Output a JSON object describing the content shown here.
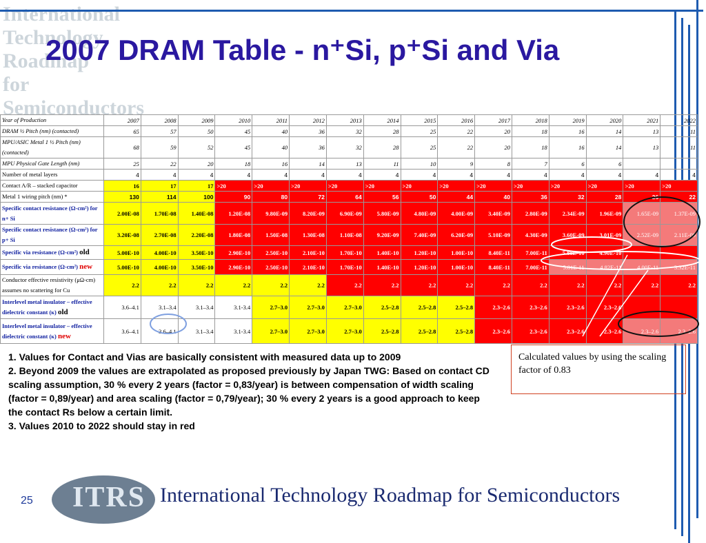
{
  "header": {
    "logo_text": "International Technology Roadmap for Semiconductors",
    "title": "2007 DRAM Table - n⁺Si, p⁺Si and Via"
  },
  "table": {
    "rows": [
      {
        "label": "Year of Production",
        "cells": [
          2007,
          2008,
          2009,
          2010,
          2011,
          2012,
          2013,
          2014,
          2015,
          2016,
          2017,
          2018,
          2019,
          2020,
          2021,
          2022
        ]
      },
      {
        "label": "DRAM ½ Pitch (nm) (contacted)",
        "cells": [
          65,
          57,
          50,
          45,
          40,
          36,
          32,
          28,
          25,
          22,
          20,
          18,
          16,
          14,
          13,
          11
        ]
      },
      {
        "label": "MPU/ASIC Metal 1 ½ Pitch (nm)(contacted)",
        "cells": [
          68,
          59,
          52,
          45,
          40,
          36,
          32,
          28,
          25,
          22,
          20,
          18,
          16,
          14,
          13,
          11
        ]
      },
      {
        "label": "MPU Physical Gate Length (nm)",
        "cells": [
          25,
          22,
          20,
          18,
          16,
          14,
          13,
          11,
          10,
          9,
          8,
          7,
          6,
          6
        ]
      },
      {
        "label": "Number of metal layers",
        "cells": [
          4,
          4,
          4,
          4,
          4,
          4,
          4,
          4,
          4,
          4,
          4,
          4,
          4,
          4,
          4,
          4
        ]
      },
      {
        "label": "Contact A/R – stacked capacitor",
        "cells": [
          16,
          17,
          17,
          ">20",
          ">20",
          ">20",
          ">20",
          ">20",
          ">20",
          ">20",
          ">20",
          ">20",
          ">20",
          ">20",
          ">20",
          ">20"
        ]
      },
      {
        "label": "Metal 1 wiring pitch (nm) *",
        "cells": [
          130,
          114,
          100,
          90,
          80,
          72,
          64,
          56,
          50,
          44,
          40,
          36,
          32,
          28,
          26,
          22
        ]
      },
      {
        "label": "Specific contact resistance (Ω-cm²) for n+ Si",
        "cells": [
          "2.00E-08",
          "1.70E-08",
          "1.40E-08",
          "1.20E-08",
          "9.80E-09",
          "8.20E-09",
          "6.90E-09",
          "5.80E-09",
          "4.80E-09",
          "4.00E-09",
          "3.40E-09",
          "2.80E-09",
          "2.34E-09",
          "1.96E-09",
          "1.65E-09",
          "1.37E-09"
        ]
      },
      {
        "label": "Specific contact resistance (Ω-cm²) for p+ Si",
        "cells": [
          "3.20E-08",
          "2.70E-08",
          "2.20E-08",
          "1.80E-08",
          "1.50E-08",
          "1.30E-08",
          "1.10E-08",
          "9.20E-09",
          "7.40E-09",
          "6.20E-09",
          "5.10E-09",
          "4.30E-09",
          "3.60E-09",
          "3.01E-09",
          "2.52E-09",
          "2.11E-09"
        ]
      },
      {
        "label": "Specific via resistance (Ω-cm²)",
        "tag": "old",
        "cells": [
          "5.00E-10",
          "4.00E-10",
          "3.50E-10",
          "2.90E-10",
          "2.50E-10",
          "2.10E-10",
          "1.70E-10",
          "1.40E-10",
          "1.20E-10",
          "1.00E-10",
          "8.40E-11",
          "7.00E-11",
          "5.88E-10",
          "4.90E-10"
        ]
      },
      {
        "label": "Specific via resistance (Ω-cm²)",
        "tag": "new",
        "cells": [
          "5.00E-10",
          "4.00E-10",
          "3.50E-10",
          "2.90E-10",
          "2.50E-10",
          "2.10E-10",
          "1.70E-10",
          "1.40E-10",
          "1.20E-10",
          "1.00E-10",
          "8.40E-11",
          "7.00E-11",
          "5.81E-11",
          "4.82E-11",
          "4.00E-11",
          "3.32E-11"
        ]
      },
      {
        "label": "Conductor effective resistivity (μΩ-cm) assumes no scattering for Cu",
        "cells": [
          2.2,
          2.2,
          2.2,
          2.2,
          2.2,
          2.2,
          2.2,
          2.2,
          2.2,
          2.2,
          2.2,
          2.2,
          2.2,
          2.2,
          2.2,
          2.2
        ]
      },
      {
        "label": "Interlevel metal insulator – effective dielectric constant (κ)",
        "tag": "old",
        "cells": [
          "3.6–4.1",
          "3.1–3.4",
          "3.1–3.4",
          "3.1-3.4",
          "2.7–3.0",
          "2.7–3.0",
          "2.7–3.0",
          "2.5–2.8",
          "2.5–2.8",
          "2.5–2.8",
          "2.3–2.6",
          "2.3–2.6",
          "2.3–2.6",
          "2.3–2.6"
        ]
      },
      {
        "label": "Interlevel metal insulator – effective dielectric constant (κ)",
        "tag": "new",
        "cells": [
          "3.6–4.1",
          "3.6–4.1",
          "3.1–3.4",
          "3.1-3.4",
          "2.7–3.0",
          "2.7–3.0",
          "2.7–3.0",
          "2.5–2.8",
          "2.5–2.8",
          "2.5–2.8",
          "2.3–2.6",
          "2.3–2.6",
          "2.3–2.6",
          "2.3–2.6",
          "2.3–2.6",
          "2.3–2.6"
        ]
      }
    ]
  },
  "notes": [
    "1. Values for Contact and Vias are basically consistent with measured data up to 2009",
    "2. Beyond 2009 the values are extrapolated as proposed previously by Japan TWG: Based on contact CD scaling assumption, 30 % every 2 years (factor = 0,83/year) is between compensation of width scaling (factor = 0,89/year) and area scaling (factor = 0,79/year);    30 % every 2 years is a good approach to keep the contact Rs below a certain limit.",
    "3. Values 2010 to 2022 should stay in red"
  ],
  "callout": "Calculated values by using the scaling factor  of  0.83",
  "footer": {
    "page": "25",
    "logo": "ITRS",
    "org": "International Technology Roadmap for Semiconductors"
  }
}
